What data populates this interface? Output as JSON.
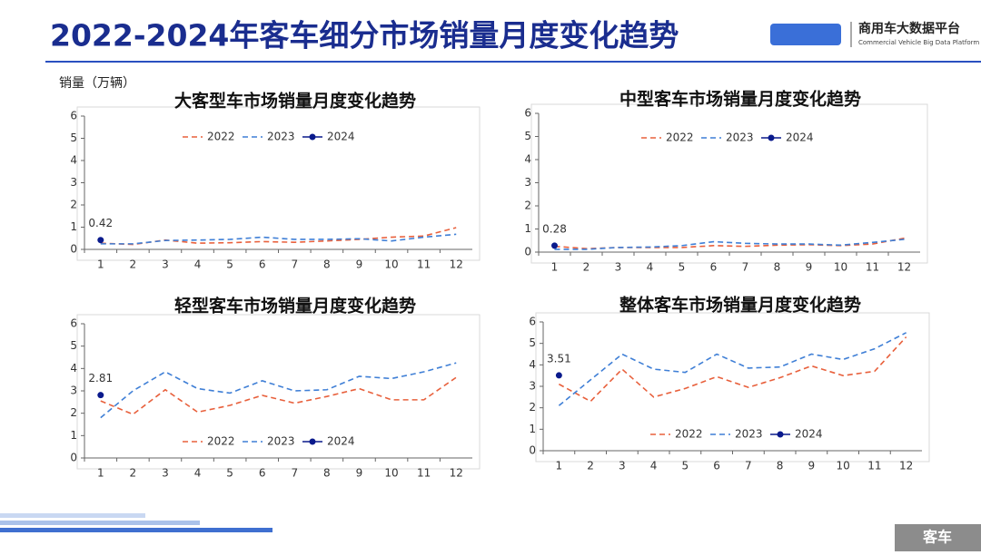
{
  "header": {
    "title": "2022-2024年客车细分市场销量月度变化趋势",
    "logo_name": "商用车大数据平台",
    "logo_subtitle": "Commercial Vehicle Big Data Platform",
    "unit_label": "销量（万辆）"
  },
  "footer": {
    "tag": "客车"
  },
  "chart_data": [
    {
      "type": "line",
      "title": "大客型车市场销量月度变化趋势",
      "legend": "top",
      "categories": [
        "1",
        "2",
        "3",
        "4",
        "5",
        "6",
        "7",
        "8",
        "9",
        "10",
        "11",
        "12"
      ],
      "ylim": [
        0,
        6
      ],
      "yticks": [
        0,
        1,
        2,
        3,
        4,
        5,
        6
      ],
      "series": [
        {
          "name": "2022",
          "color": "#e8603c",
          "style": "dashed",
          "values": [
            0.28,
            0.22,
            0.42,
            0.28,
            0.3,
            0.35,
            0.32,
            0.38,
            0.45,
            0.55,
            0.6,
            0.98
          ]
        },
        {
          "name": "2023",
          "color": "#3f7fd6",
          "style": "dashed",
          "values": [
            0.25,
            0.25,
            0.4,
            0.42,
            0.45,
            0.55,
            0.45,
            0.45,
            0.48,
            0.38,
            0.55,
            0.68
          ]
        },
        {
          "name": "2024",
          "color": "#0a1a8c",
          "style": "marker",
          "values": [
            0.42,
            null,
            null,
            null,
            null,
            null,
            null,
            null,
            null,
            null,
            null,
            null
          ]
        }
      ]
    },
    {
      "type": "line",
      "title": "中型客车市场销量月度变化趋势",
      "legend": "top",
      "categories": [
        "1",
        "2",
        "3",
        "4",
        "5",
        "6",
        "7",
        "8",
        "9",
        "10",
        "11",
        "12"
      ],
      "ylim": [
        0,
        6
      ],
      "yticks": [
        0,
        1,
        2,
        3,
        4,
        5,
        6
      ],
      "series": [
        {
          "name": "2022",
          "color": "#e8603c",
          "style": "dashed",
          "values": [
            0.25,
            0.15,
            0.2,
            0.2,
            0.2,
            0.28,
            0.25,
            0.3,
            0.32,
            0.28,
            0.35,
            0.6
          ]
        },
        {
          "name": "2023",
          "color": "#3f7fd6",
          "style": "dashed",
          "values": [
            0.12,
            0.12,
            0.2,
            0.22,
            0.28,
            0.45,
            0.38,
            0.35,
            0.35,
            0.3,
            0.42,
            0.55
          ]
        },
        {
          "name": "2024",
          "color": "#0a1a8c",
          "style": "marker",
          "values": [
            0.28,
            null,
            null,
            null,
            null,
            null,
            null,
            null,
            null,
            null,
            null,
            null
          ]
        }
      ]
    },
    {
      "type": "line",
      "title": "轻型客车市场销量月度变化趋势",
      "legend": "bottom",
      "categories": [
        "1",
        "2",
        "3",
        "4",
        "5",
        "6",
        "7",
        "8",
        "9",
        "10",
        "11",
        "12"
      ],
      "ylim": [
        0,
        6
      ],
      "yticks": [
        0,
        1,
        2,
        3,
        4,
        5,
        6
      ],
      "series": [
        {
          "name": "2022",
          "color": "#e8603c",
          "style": "dashed",
          "values": [
            2.55,
            1.95,
            3.05,
            2.05,
            2.35,
            2.8,
            2.45,
            2.75,
            3.1,
            2.6,
            2.6,
            3.6
          ]
        },
        {
          "name": "2023",
          "color": "#3f7fd6",
          "style": "dashed",
          "values": [
            1.8,
            3.0,
            3.85,
            3.1,
            2.9,
            3.45,
            3.0,
            3.05,
            3.65,
            3.55,
            3.85,
            4.25
          ]
        },
        {
          "name": "2024",
          "color": "#0a1a8c",
          "style": "marker",
          "values": [
            2.81,
            null,
            null,
            null,
            null,
            null,
            null,
            null,
            null,
            null,
            null,
            null
          ]
        }
      ]
    },
    {
      "type": "line",
      "title": "整体客车市场销量月度变化趋势",
      "legend": "bottom",
      "categories": [
        "1",
        "2",
        "3",
        "4",
        "5",
        "6",
        "7",
        "8",
        "9",
        "10",
        "11",
        "12"
      ],
      "ylim": [
        0,
        6
      ],
      "yticks": [
        0,
        1,
        2,
        3,
        4,
        5,
        6
      ],
      "series": [
        {
          "name": "2022",
          "color": "#e8603c",
          "style": "dashed",
          "values": [
            3.1,
            2.3,
            3.8,
            2.5,
            2.9,
            3.45,
            2.95,
            3.4,
            3.95,
            3.5,
            3.7,
            5.3
          ]
        },
        {
          "name": "2023",
          "color": "#3f7fd6",
          "style": "dashed",
          "values": [
            2.1,
            3.3,
            4.5,
            3.8,
            3.65,
            4.5,
            3.85,
            3.9,
            4.5,
            4.25,
            4.75,
            5.5
          ]
        },
        {
          "name": "2024",
          "color": "#0a1a8c",
          "style": "marker",
          "values": [
            3.51,
            null,
            null,
            null,
            null,
            null,
            null,
            null,
            null,
            null,
            null,
            null
          ]
        }
      ]
    }
  ]
}
